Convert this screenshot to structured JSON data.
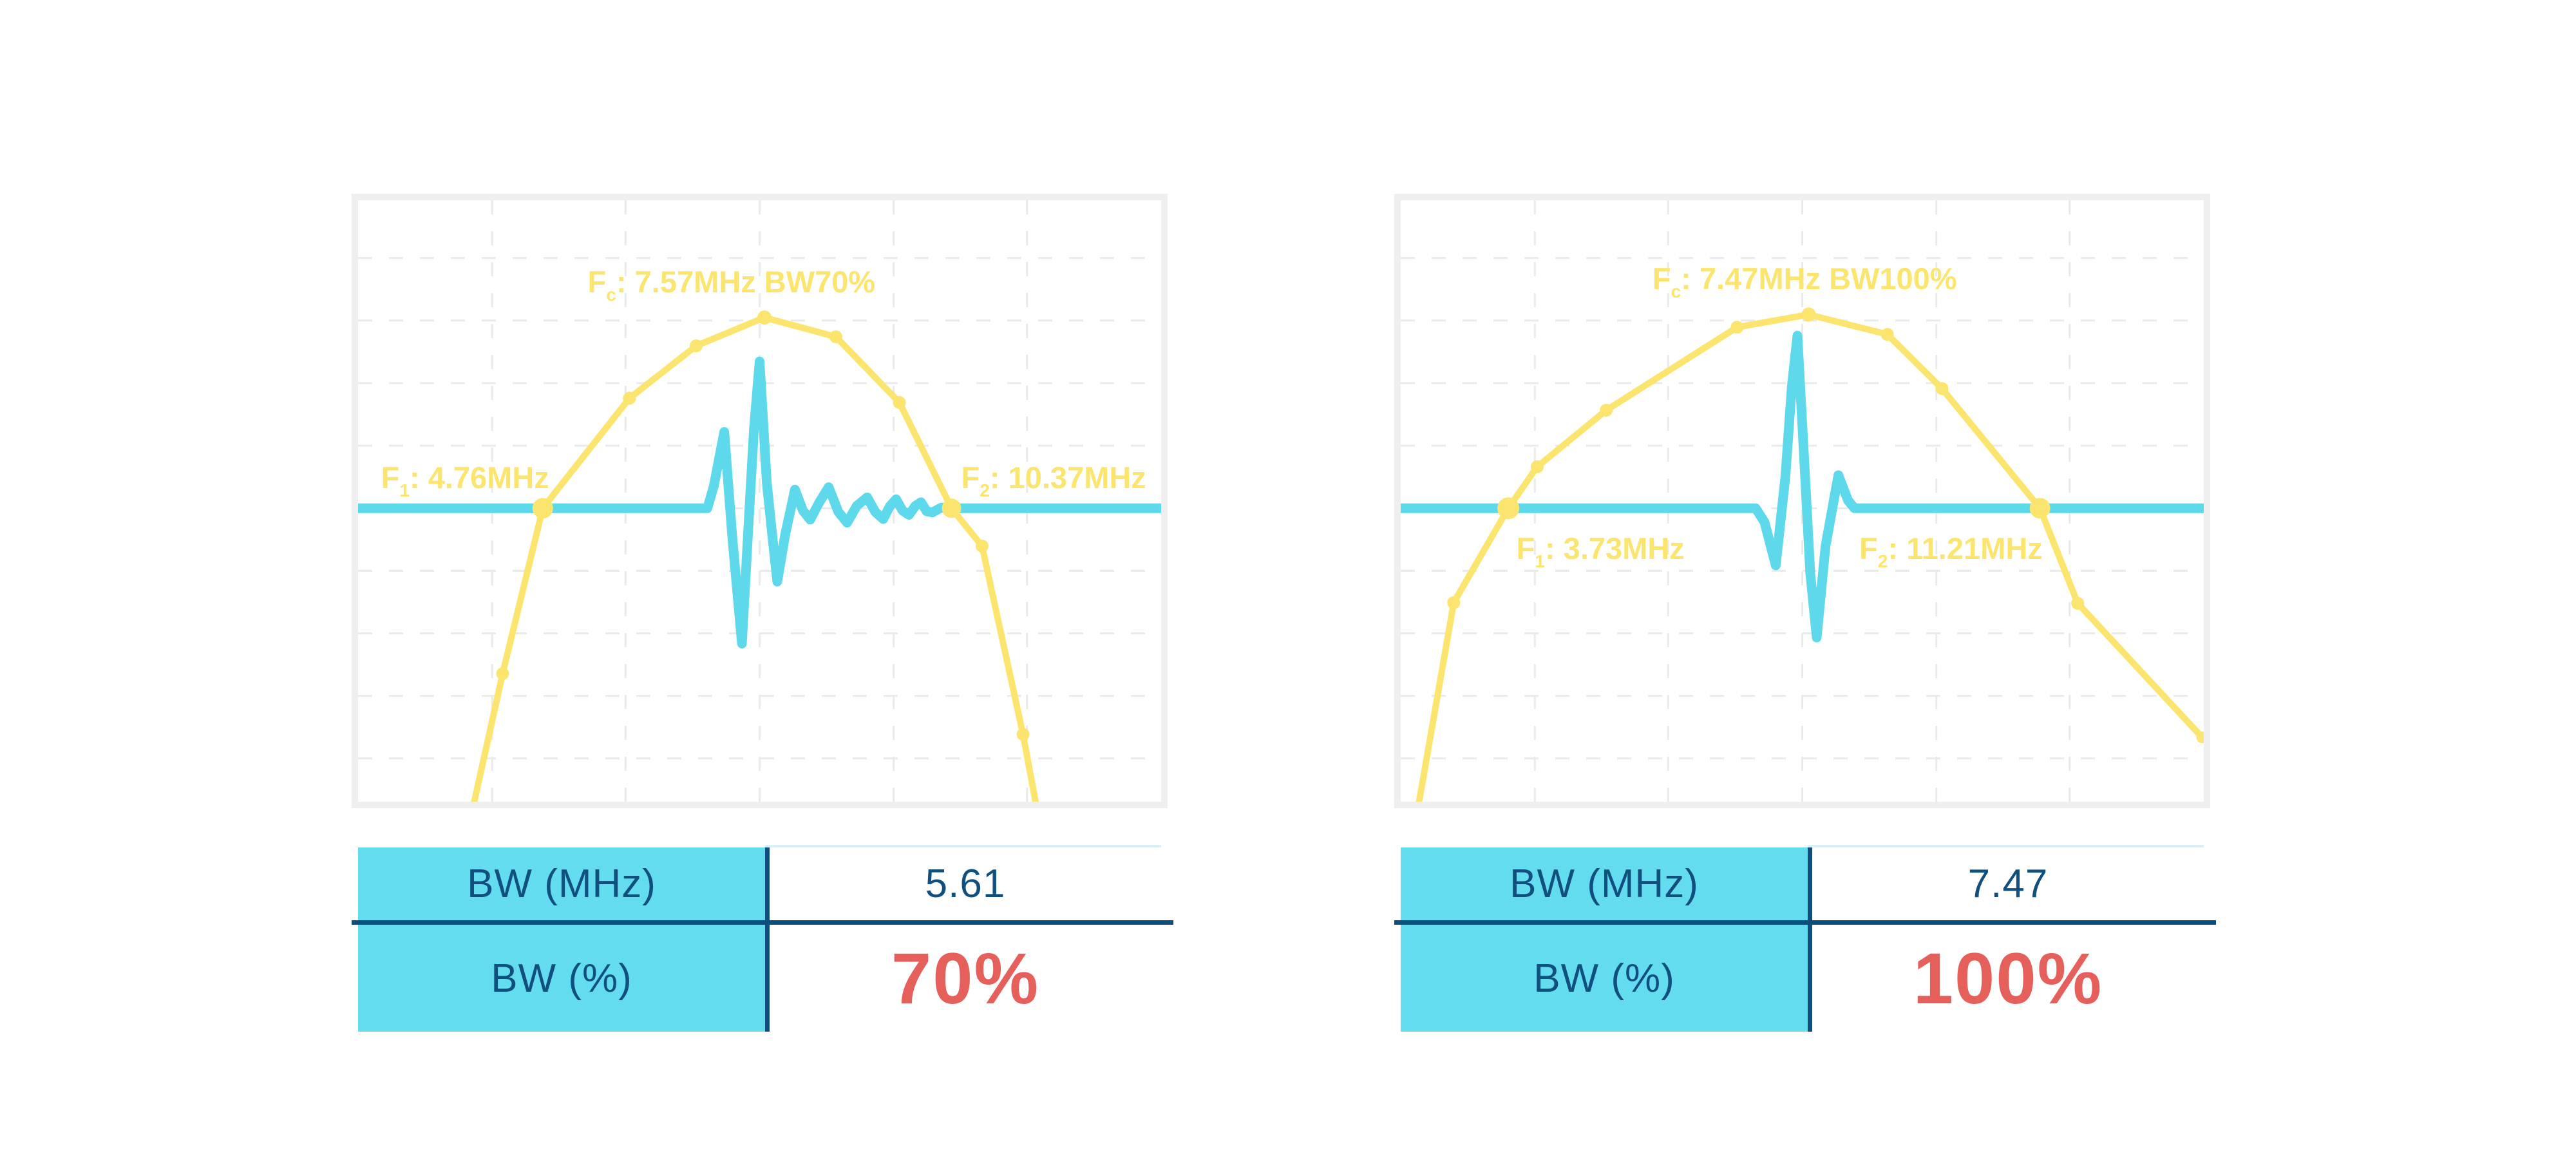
{
  "colors": {
    "yellow": "#FBE56F",
    "cyan": "#5ED9EC",
    "table_cyan": "#62DCEE",
    "navy": "#0D4E7E",
    "text_navy": "#11507E",
    "red": "#E6605B",
    "grid": "#EAEAEA",
    "chart_border": "#EFEFEF",
    "pale_line": "#D8F0F6",
    "background": "#FFFFFF"
  },
  "chart_data": [
    {
      "type": "line",
      "description": "Pulse spectrum with 70% fractional bandwidth: yellow frequency spectrum with point markers, cyan pulse-echo waveform on -6dB baseline",
      "f_center_mhz": 7.57,
      "f_low_mhz": 4.76,
      "f_high_mhz": 10.37,
      "bandwidth_mhz": 5.61,
      "bandwidth_pct": 70,
      "grid": {
        "vertical_pct": [
          16.7,
          33.3,
          50.0,
          66.7,
          83.3
        ],
        "horizontal_pct": [
          9.6,
          20.0,
          30.4,
          40.8,
          51.2,
          61.6,
          72.0,
          82.4,
          92.8
        ]
      },
      "annotations": {
        "fc": {
          "label": "F",
          "sub": "c",
          "text": ": 7.57MHz BW70%",
          "x": 46.5,
          "y": 14.0,
          "align": "center"
        },
        "f1": {
          "label": "F",
          "sub": "1",
          "text": ": 4.76MHz",
          "x": 23.8,
          "y": 46.6,
          "align": "right"
        },
        "f2": {
          "label": "F",
          "sub": "2",
          "text": ": 10.37MHz",
          "x": 75.1,
          "y": 46.6,
          "align": "left"
        }
      },
      "series": [
        {
          "name": "spectrum",
          "color_key": "yellow",
          "stroke_width": 10,
          "points_pct": [
            [
              14.3,
              101
            ],
            [
              18.0,
              78.7
            ],
            [
              23.0,
              51.2
            ],
            [
              33.8,
              32.9
            ],
            [
              42.1,
              24.2
            ],
            [
              50.6,
              19.5
            ],
            [
              59.5,
              22.7
            ],
            [
              67.4,
              33.6
            ],
            [
              73.9,
              51.2
            ],
            [
              77.7,
              57.5
            ],
            [
              82.8,
              88.8
            ],
            [
              84.5,
              101
            ]
          ]
        },
        {
          "name": "pulse-waveform",
          "color_key": "cyan",
          "stroke_width": 15,
          "points_pct": [
            [
              0,
              51.2
            ],
            [
              43.5,
              51.2
            ],
            [
              44.3,
              47.5
            ],
            [
              45.6,
              38.5
            ],
            [
              46.6,
              56
            ],
            [
              47.8,
              73.7
            ],
            [
              48.7,
              52
            ],
            [
              49.3,
              38
            ],
            [
              50.0,
              26.8
            ],
            [
              50.9,
              47
            ],
            [
              51.6,
              56
            ],
            [
              52.2,
              63.4
            ],
            [
              53.2,
              55.5
            ],
            [
              54.4,
              48.1
            ],
            [
              55.4,
              51.6
            ],
            [
              56.3,
              53.1
            ],
            [
              57.4,
              50.3
            ],
            [
              58.6,
              47.7
            ],
            [
              59.8,
              51.8
            ],
            [
              60.9,
              53.6
            ],
            [
              62.1,
              50.8
            ],
            [
              63.4,
              49.4
            ],
            [
              64.4,
              51.8
            ],
            [
              65.4,
              53.0
            ],
            [
              66.2,
              50.9
            ],
            [
              67.0,
              49.7
            ],
            [
              67.8,
              51.6
            ],
            [
              68.6,
              52.3
            ],
            [
              69.4,
              50.8
            ],
            [
              70.1,
              50.2
            ],
            [
              70.8,
              51.7
            ],
            [
              71.5,
              51.9
            ],
            [
              72.6,
              51.1
            ],
            [
              74.0,
              51.2
            ],
            [
              100,
              51.2
            ]
          ]
        }
      ],
      "markers": [
        {
          "i": 1,
          "r": 10
        },
        {
          "i": 2,
          "r": 16
        },
        {
          "i": 3,
          "r": 10
        },
        {
          "i": 4,
          "r": 10
        },
        {
          "i": 5,
          "r": 11
        },
        {
          "i": 6,
          "r": 10
        },
        {
          "i": 7,
          "r": 10
        },
        {
          "i": 8,
          "r": 15
        },
        {
          "i": 9,
          "r": 10
        },
        {
          "i": 10,
          "r": 10
        }
      ],
      "table": {
        "rows": [
          {
            "label": "BW (MHz)",
            "value": "5.61",
            "highlight": false
          },
          {
            "label": "BW (%)",
            "value": "70%",
            "highlight": true
          }
        ]
      }
    },
    {
      "type": "line",
      "description": "Pulse spectrum with 100% fractional bandwidth: yellow frequency spectrum with point markers, cyan short pulse waveform on -6dB baseline",
      "f_center_mhz": 7.47,
      "f_low_mhz": 3.73,
      "f_high_mhz": 11.21,
      "bandwidth_mhz": 7.47,
      "bandwidth_pct": 100,
      "grid": {
        "vertical_pct": [
          16.7,
          33.3,
          50.0,
          66.7,
          83.3
        ],
        "horizontal_pct": [
          9.6,
          20.0,
          30.4,
          40.8,
          51.2,
          61.6,
          72.0,
          82.4,
          92.8
        ]
      },
      "annotations": {
        "fc": {
          "label": "F",
          "sub": "c",
          "text": ": 7.47MHz BW100%",
          "x": 50.3,
          "y": 13.5,
          "align": "center"
        },
        "f1": {
          "label": "F",
          "sub": "1",
          "text": ": 3.73MHz",
          "x": 14.4,
          "y": 58.3,
          "align": "left"
        },
        "f2": {
          "label": "F",
          "sub": "2",
          "text": ": 11.21MHz",
          "x": 57.1,
          "y": 58.3,
          "align": "left"
        }
      },
      "series": [
        {
          "name": "spectrum",
          "color_key": "yellow",
          "stroke_width": 10,
          "points_pct": [
            [
              1.9,
              103
            ],
            [
              6.6,
              66.9
            ],
            [
              13.4,
              51.2
            ],
            [
              17.0,
              44.3
            ],
            [
              25.6,
              34.9
            ],
            [
              41.9,
              21.1
            ],
            [
              50.8,
              19.0
            ],
            [
              60.6,
              22.3
            ],
            [
              67.4,
              31.3
            ],
            [
              79.6,
              51.2
            ],
            [
              84.3,
              67.0
            ],
            [
              99.8,
              89.3
            ]
          ]
        },
        {
          "name": "pulse-waveform",
          "color_key": "cyan",
          "stroke_width": 15,
          "points_pct": [
            [
              0,
              51.2
            ],
            [
              44.2,
              51.2
            ],
            [
              45.3,
              53.5
            ],
            [
              46.7,
              60.7
            ],
            [
              47.9,
              46
            ],
            [
              48.7,
              31
            ],
            [
              49.4,
              22.5
            ],
            [
              50.2,
              42
            ],
            [
              51.0,
              62
            ],
            [
              51.8,
              72.7
            ],
            [
              52.9,
              57.5
            ],
            [
              54.5,
              45.7
            ],
            [
              55.7,
              49.9
            ],
            [
              56.5,
              51.2
            ],
            [
              100,
              51.2
            ]
          ]
        }
      ],
      "markers": [
        {
          "i": 1,
          "r": 10
        },
        {
          "i": 2,
          "r": 17
        },
        {
          "i": 3,
          "r": 10
        },
        {
          "i": 4,
          "r": 10
        },
        {
          "i": 5,
          "r": 10
        },
        {
          "i": 6,
          "r": 11
        },
        {
          "i": 7,
          "r": 10
        },
        {
          "i": 8,
          "r": 10
        },
        {
          "i": 9,
          "r": 16
        },
        {
          "i": 10,
          "r": 10
        },
        {
          "i": 11,
          "r": 9
        }
      ],
      "table": {
        "rows": [
          {
            "label": "BW (MHz)",
            "value": "7.47",
            "highlight": false
          },
          {
            "label": "BW (%)",
            "value": "100%",
            "highlight": true
          }
        ]
      }
    }
  ]
}
